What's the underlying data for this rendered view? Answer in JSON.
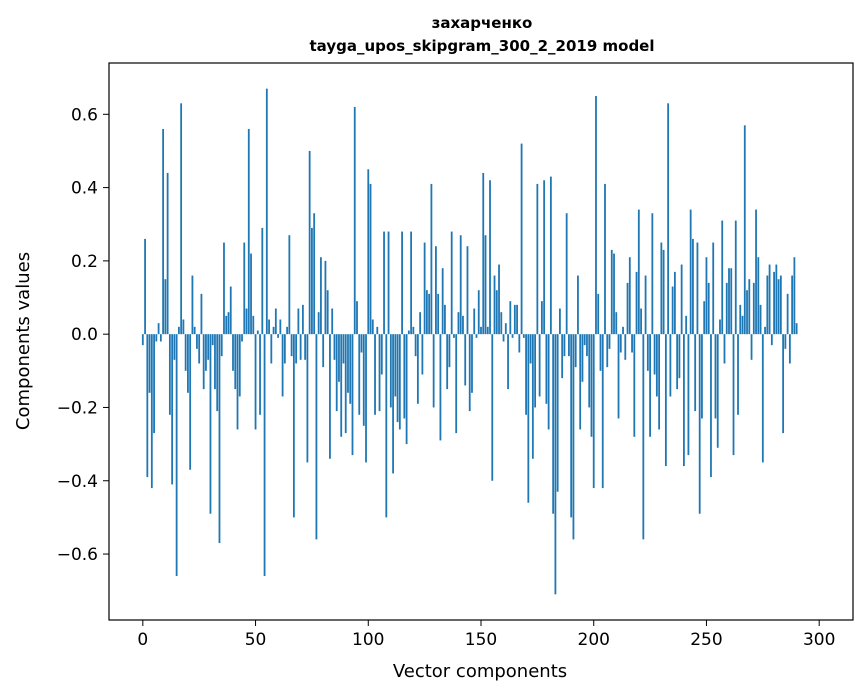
{
  "chart_data": {
    "type": "bar",
    "title": "захарченко",
    "subtitle": "tayga_upos_skipgram_300_2_2019 model",
    "xlabel": "Vector components",
    "ylabel": "Components values",
    "xlim": [
      -15,
      315
    ],
    "ylim": [
      -0.78,
      0.74
    ],
    "xticks": [
      0,
      50,
      100,
      150,
      200,
      250,
      300
    ],
    "yticks": [
      -0.6,
      -0.4,
      -0.2,
      0.0,
      0.2,
      0.4,
      0.6
    ],
    "ytick_labels": [
      "−0.6",
      "−0.4",
      "−0.2",
      "0.0",
      "0.2",
      "0.4",
      "0.6"
    ],
    "grid": false,
    "bar_color": "#1f77b4",
    "series": [
      {
        "values": [
          -0.03,
          0.26,
          -0.39,
          -0.16,
          -0.42,
          -0.27,
          -0.02,
          0.03,
          -0.02,
          0.56,
          0.15,
          0.44,
          -0.22,
          -0.41,
          -0.07,
          -0.66,
          0.02,
          0.63,
          0.04,
          -0.1,
          -0.16,
          -0.37,
          0.16,
          0.02,
          -0.04,
          -0.08,
          0.11,
          -0.15,
          -0.1,
          -0.07,
          -0.49,
          -0.03,
          -0.15,
          -0.21,
          -0.57,
          -0.06,
          0.25,
          0.05,
          0.06,
          0.13,
          -0.1,
          -0.15,
          -0.26,
          -0.17,
          -0.02,
          0.25,
          0.07,
          0.56,
          0.22,
          0.05,
          -0.26,
          0.01,
          -0.22,
          0.29,
          -0.66,
          0.67,
          0.04,
          -0.08,
          0.02,
          0.07,
          -0.01,
          0.04,
          -0.17,
          -0.08,
          0.02,
          0.27,
          -0.06,
          -0.5,
          -0.08,
          0.07,
          -0.07,
          0.08,
          -0.07,
          -0.35,
          0.5,
          0.29,
          0.33,
          -0.56,
          0.06,
          0.21,
          -0.09,
          0.2,
          0.12,
          -0.34,
          0.07,
          -0.07,
          -0.21,
          -0.13,
          -0.28,
          -0.08,
          -0.27,
          -0.16,
          -0.19,
          -0.33,
          0.62,
          0.09,
          -0.22,
          -0.05,
          -0.25,
          -0.35,
          0.45,
          0.41,
          0.04,
          -0.22,
          0.02,
          -0.21,
          -0.11,
          0.28,
          -0.5,
          0.28,
          -0.2,
          -0.38,
          -0.17,
          -0.24,
          -0.26,
          0.28,
          -0.23,
          -0.3,
          0.01,
          0.28,
          0.02,
          -0.06,
          -0.19,
          0.06,
          -0.11,
          0.25,
          0.12,
          0.11,
          0.41,
          -0.2,
          0.24,
          0.11,
          -0.29,
          0.18,
          0.08,
          -0.15,
          -0.09,
          0.28,
          -0.01,
          -0.27,
          0.06,
          0.27,
          0.05,
          -0.14,
          0.24,
          -0.21,
          -0.16,
          0.07,
          -0.01,
          0.12,
          0.02,
          0.44,
          0.27,
          0.02,
          0.42,
          -0.4,
          0.16,
          0.12,
          0.19,
          0.06,
          -0.02,
          0.03,
          -0.15,
          0.09,
          -0.01,
          0.08,
          0.08,
          -0.05,
          0.52,
          -0.01,
          -0.22,
          -0.46,
          -0.08,
          -0.34,
          -0.2,
          0.41,
          -0.17,
          0.09,
          0.42,
          -0.19,
          -0.26,
          0.43,
          -0.49,
          -0.71,
          -0.43,
          0.07,
          -0.12,
          -0.06,
          0.33,
          -0.06,
          -0.5,
          -0.56,
          -0.09,
          0.16,
          -0.26,
          -0.13,
          -0.03,
          -0.06,
          -0.2,
          -0.28,
          -0.42,
          0.65,
          0.11,
          -0.1,
          -0.42,
          0.41,
          -0.09,
          -0.04,
          0.23,
          0.22,
          0.06,
          -0.23,
          -0.05,
          0.02,
          -0.07,
          0.14,
          0.21,
          -0.05,
          -0.28,
          0.17,
          0.34,
          0.07,
          -0.56,
          0.16,
          -0.1,
          -0.28,
          0.33,
          -0.11,
          -0.17,
          -0.26,
          0.25,
          0.23,
          -0.36,
          0.63,
          -0.17,
          0.13,
          0.17,
          -0.15,
          -0.12,
          0.19,
          -0.36,
          0.05,
          -0.33,
          0.34,
          0.26,
          -0.21,
          0.25,
          -0.49,
          -0.23,
          0.09,
          0.21,
          0.14,
          -0.39,
          0.25,
          -0.23,
          -0.31,
          0.04,
          0.31,
          -0.08,
          0.14,
          0.18,
          0.18,
          -0.33,
          0.31,
          -0.22,
          0.08,
          0.05,
          0.57,
          0.12,
          0.15,
          -0.07,
          0.14,
          0.34,
          0.21,
          0.08,
          -0.35,
          0.02,
          0.16,
          0.19,
          -0.03,
          0.17,
          0.19,
          0.15,
          0.16,
          -0.27,
          -0.04,
          0.11,
          -0.08,
          0.16,
          0.21,
          0.03
        ]
      }
    ]
  }
}
